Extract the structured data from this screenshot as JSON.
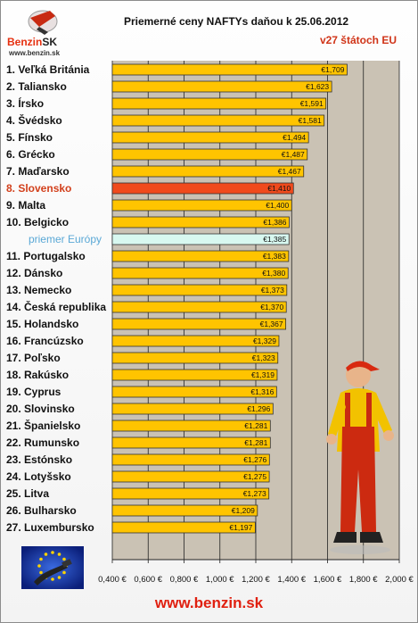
{
  "header": {
    "title": "Priemerné ceny NAFTYs daňou k 25.06.2012",
    "subtitle": "v27 štátoch EU"
  },
  "logo": {
    "brand_main": "Benzin",
    "brand_suffix": "SK",
    "url": "www.benzin.sk"
  },
  "footer": {
    "url": "www.benzin.sk"
  },
  "colors": {
    "bar": "#ffc400",
    "highlight": "#f04a1c",
    "average": "#d8f8f0",
    "plot_bg": "#cac2b4",
    "frame": "#8c8c8c"
  },
  "chart_data": {
    "type": "bar",
    "orientation": "horizontal",
    "title": "Priemerné ceny NAFTYs daňou k 25.06.2012",
    "subtitle": "v27 štátoch EU",
    "xlim": [
      0.4,
      2.0
    ],
    "x_ticks": [
      "0,400 €",
      "0,600 €",
      "0,800 €",
      "1,000 €",
      "1,200 €",
      "1,400 €",
      "1,600 €",
      "1,800 €",
      "2,000 €"
    ],
    "grid": "vertical",
    "categories": [
      "1. Veľká Británia",
      "2. Taliansko",
      "3. Írsko",
      "4. Švédsko",
      "5. Fínsko",
      "6. Grécko",
      "7. Maďarsko",
      "8. Slovensko",
      "9. Malta",
      "10. Belgicko",
      "priemer Európy",
      "11. Portugalsko",
      "12. Dánsko",
      "13. Nemecko",
      "14. Česká republika",
      "15. Holandsko",
      "16. Francúzsko",
      "17. Poľsko",
      "18. Rakúsko",
      "19. Cyprus",
      "20. Slovinsko",
      "21. Španielsko",
      "22. Rumunsko",
      "23. Estónsko",
      "24. Lotyšsko",
      "25. Litva",
      "26. Bulharsko",
      "27. Luxembursko"
    ],
    "values": [
      1.709,
      1.623,
      1.591,
      1.581,
      1.494,
      1.487,
      1.467,
      1.41,
      1.4,
      1.386,
      1.385,
      1.383,
      1.38,
      1.373,
      1.37,
      1.367,
      1.329,
      1.323,
      1.319,
      1.316,
      1.296,
      1.281,
      1.281,
      1.276,
      1.275,
      1.273,
      1.209,
      1.197
    ],
    "value_labels": [
      "€1,709",
      "€1,623",
      "€1,591",
      "€1,581",
      "€1,494",
      "€1,487",
      "€1,467",
      "€1,410",
      "€1,400",
      "€1,386",
      "€1,385",
      "€1,383",
      "€1,380",
      "€1,373",
      "€1,370",
      "€1,367",
      "€1,329",
      "€1,323",
      "€1,319",
      "€1,316",
      "€1,296",
      "€1,281",
      "€1,281",
      "€1,276",
      "€1,275",
      "€1,273",
      "€1,209",
      "€1,197"
    ],
    "highlight_index": 7,
    "average_index": 10
  }
}
